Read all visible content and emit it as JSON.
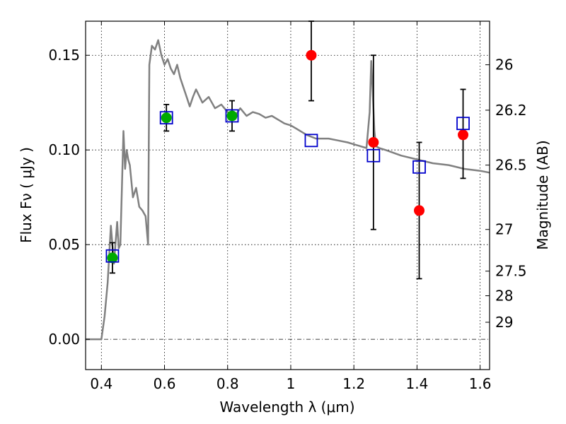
{
  "chart_data": {
    "type": "line",
    "xlabel": "Wavelength  λ (μm)",
    "ylabel": "Flux  Fν  ( μJy )",
    "y2label": "Magnitude (AB)",
    "xlim": [
      0.35,
      1.63
    ],
    "ylim": [
      -0.016,
      0.168
    ],
    "grid": true,
    "xticks": [
      0.4,
      0.6,
      0.8,
      1.0,
      1.2,
      1.4,
      1.6
    ],
    "xtick_labels": [
      "0.4",
      "0.6",
      "0.8",
      "1",
      "1.2",
      "1.4",
      "1.6"
    ],
    "yticks": [
      0.0,
      0.05,
      0.1,
      0.15
    ],
    "ytick_labels": [
      "0.00",
      "0.05",
      "0.10",
      "0.15"
    ],
    "magnitude_ticks": [
      {
        "label": "26",
        "flux": 0.145
      },
      {
        "label": "26.2",
        "flux": 0.121
      },
      {
        "label": "26.5",
        "flux": 0.092
      },
      {
        "label": "27",
        "flux": 0.058
      },
      {
        "label": "27.5",
        "flux": 0.036
      },
      {
        "label": "28",
        "flux": 0.023
      },
      {
        "label": "29",
        "flux": 0.009
      }
    ],
    "colors": {
      "model": "#808080",
      "photometry_green": "#00aa00",
      "photometry_red": "#ff0000",
      "model_squares": "#0000cc",
      "errorbar": "#000000",
      "zero_line": "#000000"
    },
    "series": [
      {
        "kind": "model_spectrum",
        "x": [
          0.35,
          0.4,
          0.41,
          0.42,
          0.43,
          0.44,
          0.45,
          0.455,
          0.46,
          0.465,
          0.47,
          0.475,
          0.48,
          0.485,
          0.49,
          0.5,
          0.51,
          0.52,
          0.53,
          0.54,
          0.548,
          0.552,
          0.56,
          0.57,
          0.58,
          0.59,
          0.6,
          0.61,
          0.62,
          0.63,
          0.64,
          0.65,
          0.66,
          0.67,
          0.68,
          0.69,
          0.7,
          0.72,
          0.74,
          0.76,
          0.78,
          0.8,
          0.82,
          0.84,
          0.86,
          0.88,
          0.9,
          0.92,
          0.94,
          0.96,
          0.98,
          1.0,
          1.02,
          1.05,
          1.08,
          1.1,
          1.12,
          1.15,
          1.18,
          1.2,
          1.22,
          1.24,
          1.25,
          1.255,
          1.26,
          1.265,
          1.27,
          1.28,
          1.3,
          1.35,
          1.4,
          1.45,
          1.5,
          1.55,
          1.6,
          1.63
        ],
        "y": [
          0.0,
          0.0,
          0.012,
          0.03,
          0.06,
          0.04,
          0.062,
          0.048,
          0.05,
          0.08,
          0.11,
          0.09,
          0.1,
          0.095,
          0.092,
          0.075,
          0.08,
          0.07,
          0.068,
          0.065,
          0.05,
          0.145,
          0.155,
          0.153,
          0.158,
          0.15,
          0.145,
          0.148,
          0.143,
          0.14,
          0.145,
          0.138,
          0.133,
          0.128,
          0.123,
          0.128,
          0.132,
          0.125,
          0.128,
          0.122,
          0.124,
          0.12,
          0.117,
          0.122,
          0.118,
          0.12,
          0.119,
          0.117,
          0.118,
          0.116,
          0.114,
          0.113,
          0.111,
          0.108,
          0.106,
          0.106,
          0.106,
          0.105,
          0.104,
          0.103,
          0.102,
          0.101,
          0.12,
          0.147,
          0.13,
          0.11,
          0.102,
          0.101,
          0.1,
          0.097,
          0.095,
          0.093,
          0.092,
          0.09,
          0.089,
          0.088
        ]
      },
      {
        "kind": "observed_detection",
        "x": [
          0.435,
          0.606,
          0.814
        ],
        "y": [
          0.043,
          0.117,
          0.118
        ],
        "yerr": [
          0.008,
          0.007,
          0.008
        ]
      },
      {
        "kind": "observed_low_significance",
        "x": [
          1.065,
          1.262,
          1.407,
          1.546
        ],
        "y": [
          0.15,
          0.104,
          0.068,
          0.108
        ],
        "yerr_low": [
          0.024,
          0.046,
          0.036,
          0.023
        ],
        "yerr_high": [
          0.035,
          0.046,
          0.036,
          0.024
        ]
      },
      {
        "kind": "model_photometry",
        "x": [
          0.435,
          0.606,
          0.814,
          1.065,
          1.262,
          1.407,
          1.546
        ],
        "y": [
          0.044,
          0.117,
          0.118,
          0.105,
          0.097,
          0.091,
          0.114
        ]
      }
    ]
  }
}
